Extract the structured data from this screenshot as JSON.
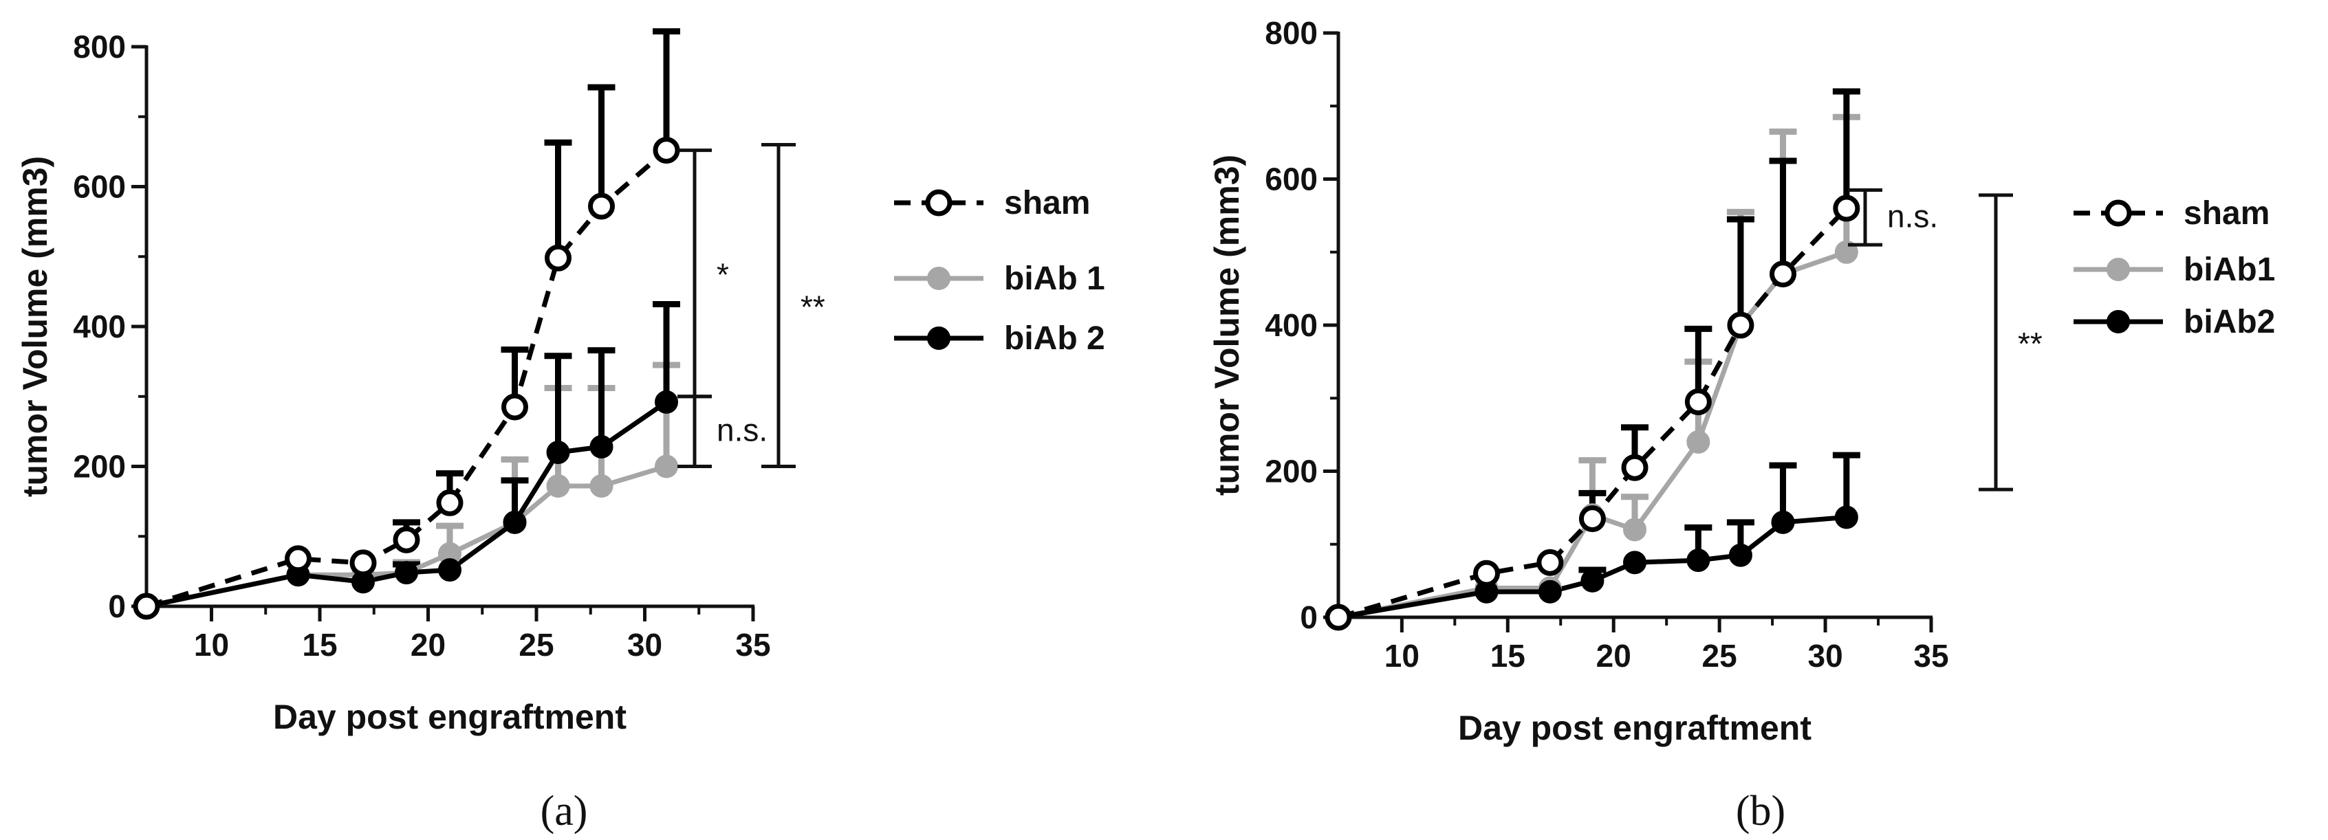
{
  "chart_data": [
    {
      "type": "line",
      "panel_label": "(a)",
      "xlabel": "Day post engraftment",
      "ylabel": "tumor Volume (mm3)",
      "xlim": [
        7,
        35
      ],
      "ylim": [
        0,
        800
      ],
      "xticks": [
        "10",
        "15",
        "20",
        "25",
        "30",
        "35"
      ],
      "yticks": [
        "0",
        "200",
        "400",
        "600",
        "800"
      ],
      "legend_position": "right",
      "series": [
        {
          "name": "sham",
          "color": "#000000",
          "style": "dashed",
          "marker": "open-circle",
          "x": [
            7,
            14,
            17,
            19,
            21,
            24,
            26,
            28,
            31
          ],
          "y": [
            0,
            68,
            62,
            95,
            148,
            285,
            498,
            572,
            652
          ],
          "err": [
            0,
            0,
            0,
            25,
            42,
            82,
            165,
            170,
            170
          ]
        },
        {
          "name": "biAb 1",
          "color": "#a6a6a6",
          "style": "solid",
          "marker": "filled-circle",
          "x": [
            7,
            14,
            17,
            19,
            21,
            24,
            26,
            28,
            31
          ],
          "y": [
            0,
            45,
            45,
            48,
            75,
            120,
            172,
            172,
            200
          ],
          "err": [
            0,
            0,
            0,
            15,
            40,
            90,
            140,
            140,
            145
          ]
        },
        {
          "name": "biAb 2",
          "color": "#000000",
          "style": "solid",
          "marker": "filled-circle",
          "x": [
            7,
            14,
            17,
            19,
            21,
            24,
            26,
            28,
            31
          ],
          "y": [
            0,
            45,
            35,
            48,
            52,
            120,
            220,
            228,
            292
          ],
          "err": [
            0,
            0,
            0,
            12,
            0,
            60,
            138,
            138,
            140
          ]
        }
      ],
      "significance": [
        {
          "label": "*",
          "from": 300,
          "to": 652
        },
        {
          "label": "n.s.",
          "from": 200,
          "to": 300
        },
        {
          "label": "**",
          "from": 200,
          "to": 660
        }
      ]
    },
    {
      "type": "line",
      "panel_label": "(b)",
      "xlabel": "Day post engraftment",
      "ylabel": "tumor Volume (mm3)",
      "xlim": [
        7,
        35
      ],
      "ylim": [
        0,
        800
      ],
      "xticks": [
        "10",
        "15",
        "20",
        "25",
        "30",
        "35"
      ],
      "yticks": [
        "0",
        "200",
        "400",
        "600",
        "800"
      ],
      "legend_position": "right",
      "series": [
        {
          "name": "sham",
          "color": "#000000",
          "style": "dashed",
          "marker": "open-circle",
          "x": [
            7,
            14,
            17,
            19,
            21,
            24,
            26,
            28,
            31
          ],
          "y": [
            0,
            60,
            75,
            135,
            205,
            295,
            400,
            470,
            560
          ],
          "err": [
            0,
            0,
            0,
            35,
            55,
            100,
            145,
            155,
            160
          ]
        },
        {
          "name": "biAb1",
          "color": "#a6a6a6",
          "style": "solid",
          "marker": "filled-circle",
          "x": [
            7,
            14,
            17,
            19,
            21,
            24,
            26,
            28,
            31
          ],
          "y": [
            0,
            40,
            40,
            140,
            120,
            240,
            400,
            470,
            500
          ],
          "err": [
            0,
            0,
            0,
            75,
            45,
            110,
            155,
            195,
            185
          ]
        },
        {
          "name": "biAb2",
          "color": "#000000",
          "style": "solid",
          "marker": "filled-circle",
          "x": [
            7,
            14,
            17,
            19,
            21,
            24,
            26,
            28,
            31
          ],
          "y": [
            0,
            35,
            35,
            50,
            75,
            78,
            85,
            130,
            137
          ],
          "err": [
            0,
            0,
            0,
            15,
            0,
            45,
            45,
            78,
            85
          ]
        }
      ],
      "significance": [
        {
          "label": "n.s.",
          "from": 510,
          "to": 585
        },
        {
          "label": "**",
          "from": 175,
          "to": 578
        }
      ]
    }
  ]
}
